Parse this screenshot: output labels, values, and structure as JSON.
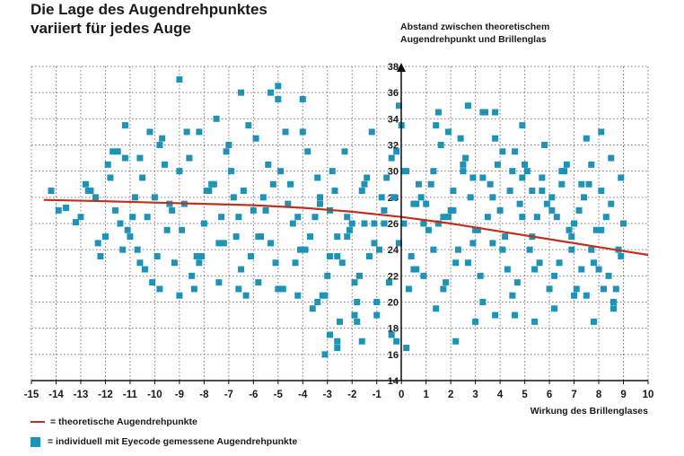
{
  "chart_data": {
    "type": "scatter",
    "title_line1": "Die Lage des Augendrehpunktes",
    "title_line2": "variiert für jedes Auge",
    "ylabel_line1": "Abstand zwischen theoretischem",
    "ylabel_line2": "Augendrehpunkt und Brillenglas",
    "xlabel": "Wirkung des Brillenglases",
    "xlim": [
      -15,
      10
    ],
    "ylim": [
      14,
      38
    ],
    "x_ticks": [
      -15,
      -14,
      -13,
      -12,
      -11,
      -10,
      -9,
      -8,
      -7,
      -6,
      -5,
      -4,
      -3,
      -2,
      -1,
      0,
      1,
      2,
      3,
      4,
      5,
      6,
      7,
      8,
      9,
      10
    ],
    "y_ticks": [
      14,
      16,
      18,
      20,
      22,
      24,
      26,
      28,
      30,
      32,
      34,
      36,
      38
    ],
    "grid": true,
    "legend_position": "bottom-left",
    "colors": {
      "line": "#c0311d",
      "points": "#1f93b6"
    },
    "series": [
      {
        "name": "= theoretische Augendrehpunkte",
        "kind": "line",
        "x": [
          -14.5,
          -12,
          -10,
          -8,
          -6,
          -4,
          -2,
          0,
          2,
          4,
          6,
          8,
          10
        ],
        "y": [
          27.8,
          27.7,
          27.6,
          27.5,
          27.4,
          27.2,
          26.9,
          26.5,
          26.0,
          25.4,
          24.8,
          24.2,
          23.6
        ]
      },
      {
        "name": "= individuell mit Eyecode gemessene Augendrehpunkte",
        "kind": "scatter",
        "x": [
          -14.2,
          -13.6,
          -13.2,
          -12.8,
          -12.4,
          -12.2,
          -11.9,
          -11.6,
          -11.4,
          -11.2,
          -11.0,
          -10.7,
          -10.5,
          -10.3,
          -10.1,
          -9.8,
          -9.5,
          -9.2,
          -9.0,
          -8.8,
          -8.5,
          -8.2,
          -8.0,
          -7.7,
          -7.4,
          -7.1,
          -6.8,
          -6.5,
          -6.2,
          -6.0,
          -5.7,
          -5.4,
          -5.1,
          -4.8,
          -4.5,
          -4.2,
          -3.9,
          -3.6,
          -3.3,
          -3.0,
          -2.8,
          -2.5,
          -2.2,
          -1.9,
          -1.6,
          -1.3,
          -1.0,
          -0.7,
          -0.4,
          -0.1,
          0.2,
          0.5,
          0.8,
          1.1,
          1.4,
          1.7,
          2.0,
          2.3,
          2.6,
          2.9,
          3.2,
          3.5,
          3.8,
          4.1,
          4.4,
          4.7,
          5.0,
          5.3,
          5.6,
          5.9,
          6.2,
          6.5,
          6.8,
          7.1,
          7.4,
          7.7,
          8.0,
          8.3,
          8.6,
          8.9,
          -13.9,
          -13.0,
          -12.6,
          -12.0,
          -11.7,
          -11.3,
          -10.9,
          -10.4,
          -10.0,
          -9.7,
          -9.3,
          -8.9,
          -8.6,
          -8.3,
          -7.9,
          -7.5,
          -7.2,
          -6.9,
          -6.6,
          -6.3,
          -5.9,
          -5.6,
          -5.3,
          -5.0,
          -4.6,
          -4.3,
          -4.0,
          -3.7,
          -3.4,
          -3.1,
          -2.9,
          -2.6,
          -2.3,
          -2.0,
          -1.7,
          -1.4,
          -1.1,
          -0.8,
          -0.5,
          -0.2,
          0.1,
          0.4,
          0.7,
          1.0,
          1.3,
          1.6,
          1.9,
          2.2,
          2.5,
          2.8,
          3.1,
          3.4,
          3.7,
          4.0,
          4.3,
          4.6,
          4.9,
          5.2,
          5.5,
          5.8,
          6.1,
          6.4,
          6.7,
          7.0,
          7.3,
          7.6,
          7.9,
          8.2,
          8.5,
          8.8,
          -12.3,
          -11.8,
          -11.1,
          -10.6,
          -9.9,
          -9.4,
          -8.7,
          -8.1,
          -7.6,
          -7.0,
          -6.4,
          -5.8,
          -5.2,
          -4.7,
          -4.1,
          -3.5,
          -3.2,
          -2.7,
          -2.4,
          -2.1,
          -1.8,
          -1.5,
          -1.2,
          -0.9,
          -0.6,
          -0.3,
          0.0,
          0.3,
          0.6,
          0.9,
          1.2,
          1.5,
          1.8,
          2.1,
          2.4,
          2.7,
          3.0,
          3.3,
          3.6,
          3.9,
          4.2,
          4.5,
          4.8,
          5.1,
          5.4,
          5.7,
          6.0,
          6.3,
          6.6,
          6.9,
          7.2,
          7.5,
          7.8,
          8.1,
          8.4,
          8.7,
          9.0,
          -11.5,
          -10.8,
          -10.2,
          -9.6,
          -8.4,
          -7.8,
          -7.3,
          -6.7,
          -6.1,
          -5.5,
          -4.9,
          -4.4,
          -3.8,
          -3.3,
          -2.9,
          -2.6,
          -2.2,
          -1.9,
          -1.5,
          -1.1,
          -0.7,
          -0.3,
          0.1,
          0.5,
          0.9,
          1.3,
          1.7,
          2.1,
          2.5,
          2.9,
          3.3,
          3.7,
          4.1,
          4.5,
          4.9,
          5.3,
          5.7,
          6.1,
          6.5,
          6.9,
          7.3,
          7.7,
          8.1,
          8.5,
          8.9,
          -12.7,
          -11.2,
          -10.6,
          -9.8,
          -9.0,
          -8.2,
          -7.4,
          -6.6,
          -5.8,
          -5.0,
          -4.2,
          -3.4,
          -2.6,
          -1.8,
          -1.0,
          -0.2,
          0.6,
          1.4,
          2.2,
          3.0,
          3.8,
          4.6,
          5.4,
          6.2,
          7.0,
          7.8,
          8.6,
          -9.0,
          -6.5,
          -5.3,
          -5.0,
          -4.0,
          -2.9,
          -2.6,
          -1.6,
          -0.1,
          0.2,
          1.5,
          2.7,
          3.3,
          3.8,
          1.9,
          -3.1,
          -0.4,
          4.9,
          7.5,
          8.1
        ],
        "y": [
          28.5,
          27.2,
          26.1,
          29.0,
          28.0,
          23.5,
          30.5,
          27.0,
          26.0,
          31.0,
          25.0,
          24.0,
          29.5,
          26.5,
          21.5,
          32.0,
          25.5,
          23.0,
          30.0,
          27.5,
          22.0,
          33.0,
          26.0,
          29.0,
          24.5,
          31.5,
          28.0,
          22.5,
          33.5,
          27.0,
          25.0,
          30.5,
          23.0,
          21.0,
          29.0,
          26.5,
          24.0,
          19.5,
          27.5,
          22.0,
          30.0,
          18.5,
          25.0,
          21.5,
          28.5,
          23.5,
          20.0,
          26.0,
          31.0,
          24.5,
          30.0,
          22.5,
          28.0,
          25.5,
          33.5,
          21.0,
          27.0,
          24.0,
          31.0,
          29.5,
          22.0,
          26.5,
          32.5,
          24.0,
          28.5,
          21.5,
          30.5,
          25.0,
          23.0,
          27.5,
          22.0,
          29.0,
          25.5,
          21.0,
          28.0,
          24.0,
          22.5,
          26.5,
          20.0,
          23.5,
          27.0,
          26.5,
          28.5,
          25.0,
          31.5,
          24.0,
          26.5,
          22.5,
          28.0,
          32.5,
          27.0,
          25.5,
          31.0,
          23.5,
          28.5,
          34.0,
          24.5,
          30.0,
          26.5,
          20.5,
          32.5,
          28.0,
          24.5,
          35.5,
          27.5,
          23.0,
          33.0,
          25.0,
          29.5,
          20.5,
          27.0,
          23.5,
          31.5,
          26.0,
          22.0,
          29.5,
          24.5,
          28.0,
          21.5,
          31.5,
          26.0,
          23.5,
          29.0,
          27.5,
          24.0,
          32.0,
          26.5,
          23.0,
          30.5,
          28.0,
          25.5,
          34.5,
          24.5,
          27.0,
          22.5,
          31.5,
          29.5,
          24.0,
          26.5,
          32.0,
          28.0,
          23.0,
          30.5,
          26.0,
          22.5,
          29.0,
          25.5,
          21.0,
          27.5,
          24.0,
          24.5,
          29.5,
          25.5,
          31.0,
          23.5,
          27.5,
          33.0,
          23.5,
          29.0,
          32.0,
          28.5,
          25.0,
          29.0,
          33.0,
          24.0,
          26.5,
          20.5,
          28.5,
          23.0,
          25.5,
          20.0,
          26.0,
          33.0,
          24.0,
          29.5,
          28.0,
          33.5,
          21.0,
          27.5,
          22.0,
          29.0,
          26.0,
          21.5,
          27.0,
          32.5,
          23.0,
          25.5,
          20.0,
          29.0,
          30.5,
          25.0,
          20.5,
          27.5,
          30.0,
          22.5,
          28.5,
          21.0,
          26.5,
          30.0,
          24.0,
          27.0,
          20.5,
          23.0,
          25.5,
          22.0,
          21.0,
          26.0,
          31.5,
          28.0,
          33.0,
          30.5,
          21.0,
          28.5,
          26.5,
          25.0,
          23.5,
          27.0,
          30.0,
          26.0,
          31.5,
          28.0,
          23.5,
          25.0,
          26.5,
          19.0,
          29.0,
          26.0,
          27.0,
          28.0,
          30.0,
          27.5,
          26.0,
          30.0,
          26.5,
          28.5,
          30.0,
          24.5,
          29.5,
          28.0,
          31.5,
          30.0,
          26.5,
          28.5,
          29.5,
          27.0,
          30.0,
          25.0,
          29.0,
          30.5,
          28.5,
          31.0,
          29.5,
          28.5,
          33.5,
          23.0,
          21.0,
          20.5,
          23.0,
          21.5,
          21.0,
          21.5,
          21.0,
          20.5,
          20.0,
          17.0,
          18.5,
          19.0,
          17.0,
          22.5,
          19.5,
          17.0,
          18.5,
          19.0,
          19.0,
          18.5,
          19.5,
          20.5,
          18.5,
          19.5,
          37.0,
          36.0,
          36.0,
          36.5,
          35.5,
          17.5,
          16.5,
          17.0,
          35.0,
          16.5,
          34.5,
          35.0,
          34.5,
          34.5,
          33.0,
          16.0,
          17.5,
          33.5,
          32.5,
          33.0
        ]
      }
    ]
  }
}
